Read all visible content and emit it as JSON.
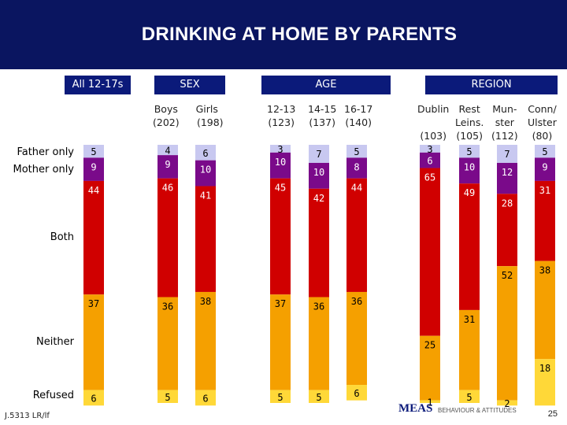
{
  "title": "DRINKING AT HOME BY PARENTS",
  "groups": {
    "all": "All 12-17s",
    "sex": "SEX",
    "age": "AGE",
    "region": "REGION"
  },
  "row_labels": {
    "father_only": "Father only",
    "mother_only": "Mother only",
    "both": "Both",
    "neither": "Neither",
    "refused": "Refused"
  },
  "column_labels": {
    "boys": "Boys\n(202)",
    "girls": "Girls\n  (198)",
    "age_12_13": "12-13\n(123)",
    "age_14_15": "14-15\n(137)",
    "age_16_17": "16-17\n(140)",
    "dublin": "Dublin\n\n(103)",
    "rest_leins": "Rest\nLeins.\n(105)",
    "munster": "Mun-\nster\n(112)",
    "conn_ulster": "Conn/\nUlster\n(80)"
  },
  "footer": {
    "ref": "J.5313 LR/lf",
    "page": "25",
    "logo": "MEAS",
    "logo_tagline": "BEHAVIOUR & ATTITUDES"
  },
  "colors": {
    "father_only": "#c8c8f0",
    "mother_only": "#7a0a8a",
    "both": "#d00000",
    "neither": "#f5a000",
    "refused": "#ffd838",
    "title_bar": "#0a1560",
    "header_box": "#0b1a7a"
  },
  "chart_data": {
    "type": "bar",
    "stacked": true,
    "categories": [
      "All 12-17s",
      "Boys (202)",
      "Girls (198)",
      "12-13 (123)",
      "14-15 (137)",
      "16-17 (140)",
      "Dublin (103)",
      "Rest Leins. (105)",
      "Mun-ster (112)",
      "Conn/ Ulster (80)"
    ],
    "series": [
      {
        "name": "Father only",
        "values": [
          5,
          4,
          6,
          3,
          7,
          5,
          3,
          5,
          7,
          5
        ]
      },
      {
        "name": "Mother only",
        "values": [
          9,
          9,
          10,
          10,
          10,
          8,
          6,
          10,
          12,
          9
        ]
      },
      {
        "name": "Both",
        "values": [
          44,
          46,
          41,
          45,
          42,
          44,
          65,
          49,
          28,
          31
        ]
      },
      {
        "name": "Neither",
        "values": [
          37,
          36,
          38,
          37,
          36,
          36,
          25,
          31,
          52,
          38
        ]
      },
      {
        "name": "Refused",
        "values": [
          6,
          5,
          6,
          5,
          5,
          6,
          1,
          5,
          2,
          18
        ]
      }
    ],
    "ylim": [
      0,
      100
    ]
  }
}
